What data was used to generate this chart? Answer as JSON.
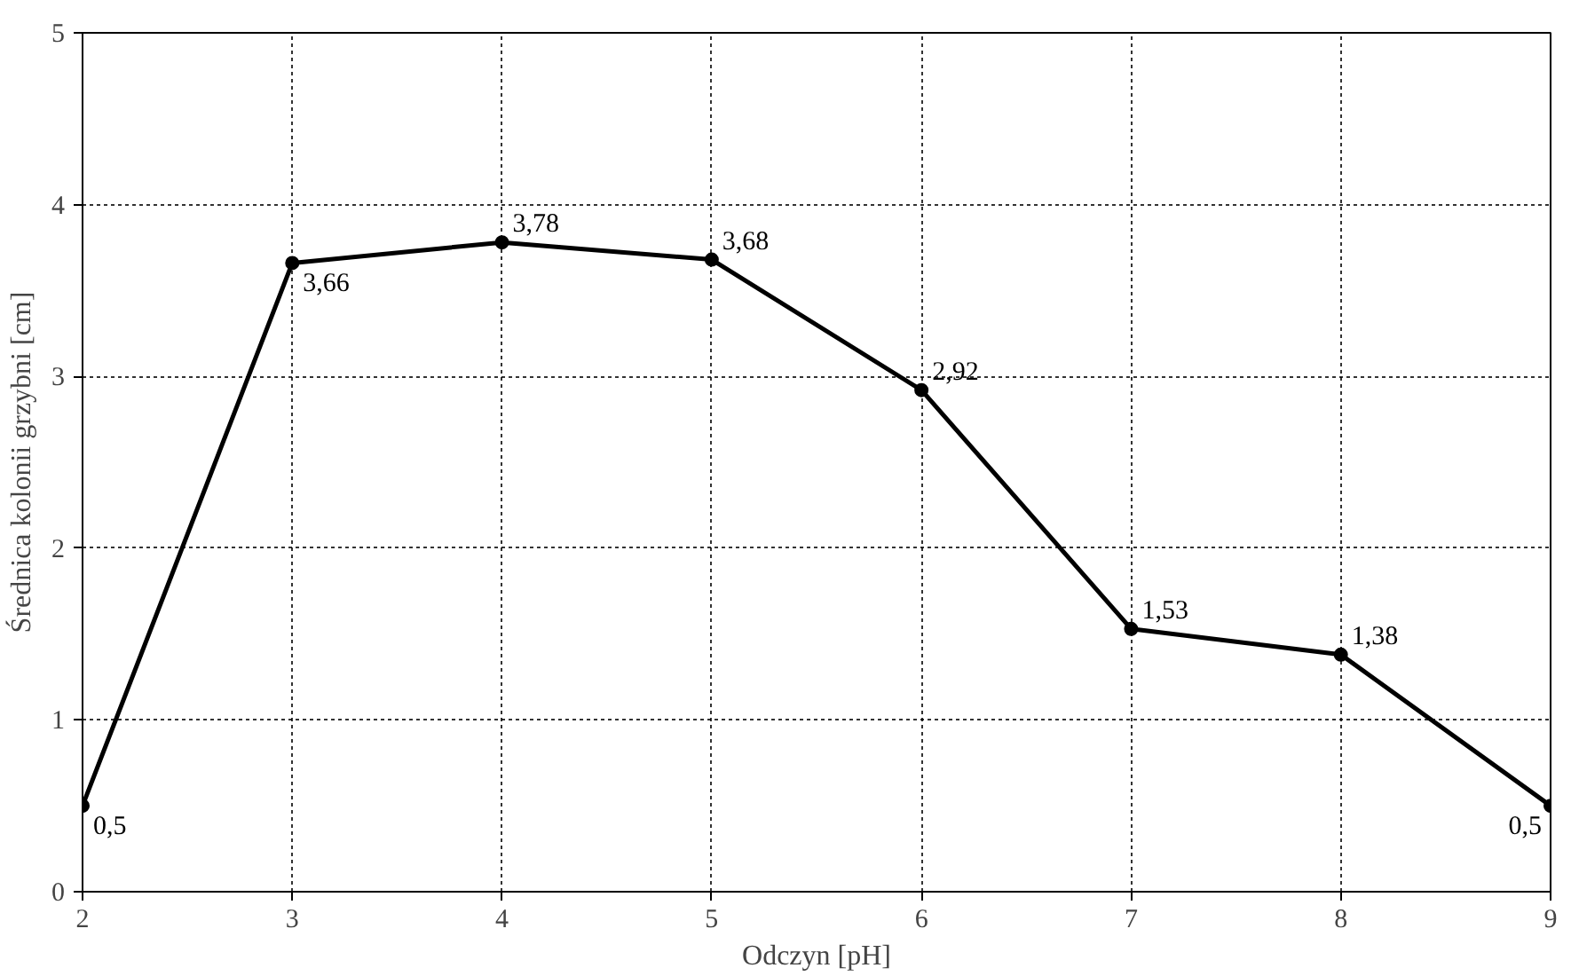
{
  "chart_data": {
    "type": "line",
    "xlabel": "Odczyn [pH]",
    "ylabel": "Średnica kolonii grzybni [cm]",
    "x": [
      2,
      3,
      4,
      5,
      6,
      7,
      8,
      9
    ],
    "series": [
      {
        "color": "#000000",
        "values": [
          0.5,
          3.66,
          3.78,
          3.68,
          2.92,
          1.53,
          1.38,
          0.5
        ],
        "value_labels": [
          "0,5",
          "3,66",
          "3,78",
          "3,68",
          "2,92",
          "1,53",
          "1,38",
          "0,5"
        ]
      }
    ],
    "xlim": [
      2,
      9
    ],
    "xticks": [
      2,
      3,
      4,
      5,
      6,
      7,
      8,
      9
    ],
    "ylim": [
      0,
      5
    ],
    "yticks": [
      0,
      1,
      2,
      3,
      4,
      5
    ],
    "grid": true,
    "marker": "circle",
    "line_style": "solid"
  }
}
